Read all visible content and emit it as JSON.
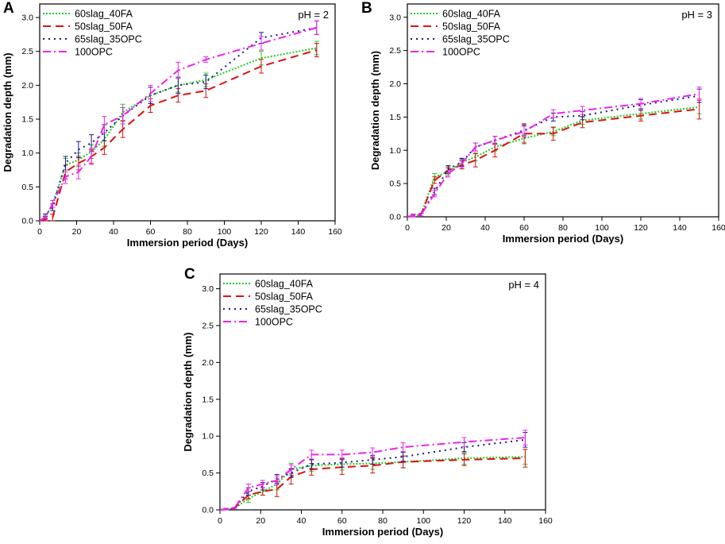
{
  "figure": {
    "series_styles": {
      "60slag_40FA": {
        "color": "#22cc22",
        "dash": "2,2"
      },
      "50slag_50FA": {
        "color": "#dd1111",
        "dash": "10,6"
      },
      "65slag_35OPC": {
        "color": "#1a1a8a",
        "dash": "2,5"
      },
      "100OPC": {
        "color": "#ee22ee",
        "dash": "10,4,2,4"
      }
    }
  },
  "chart_data": [
    {
      "panel": "A",
      "type": "line",
      "annotation": "pH = 2",
      "xlabel": "Immersion period (Days)",
      "ylabel": "Degradation depth (mm)",
      "xlim": [
        0,
        160
      ],
      "ylim": [
        0,
        3.2
      ],
      "xticks": [
        0,
        20,
        40,
        60,
        80,
        100,
        120,
        140,
        160
      ],
      "yticks": [
        0.0,
        0.5,
        1.0,
        1.5,
        2.0,
        2.5,
        3.0
      ],
      "ytick_labels": [
        "0.0",
        "0.5",
        "1.0",
        "1.5",
        "2.0",
        "2.5",
        "3.0"
      ],
      "legend_position": "top-left",
      "series": [
        {
          "name": "60slag_40FA",
          "x": [
            0,
            3,
            7,
            14,
            21,
            28,
            35,
            45,
            60,
            75,
            90,
            120,
            150
          ],
          "y": [
            0,
            0.05,
            0.25,
            0.82,
            0.9,
            1.02,
            1.2,
            1.6,
            1.85,
            2.0,
            2.08,
            2.4,
            2.55
          ],
          "err": [
            0,
            0.02,
            0.05,
            0.1,
            0.1,
            0.1,
            0.1,
            0.12,
            0.12,
            0.1,
            0.1,
            0.1,
            0.1
          ]
        },
        {
          "name": "50slag_50FA",
          "x": [
            0,
            3,
            7,
            14,
            21,
            28,
            35,
            45,
            60,
            75,
            90,
            120,
            150
          ],
          "y": [
            0,
            0.02,
            0.05,
            0.72,
            0.85,
            0.95,
            1.08,
            1.35,
            1.7,
            1.85,
            1.92,
            2.28,
            2.52
          ],
          "err": [
            0,
            0.02,
            0.05,
            0.1,
            0.1,
            0.1,
            0.1,
            0.12,
            0.1,
            0.1,
            0.1,
            0.1,
            0.1
          ]
        },
        {
          "name": "65slag_35OPC",
          "x": [
            0,
            3,
            7,
            14,
            21,
            28,
            35,
            45,
            60,
            75,
            90,
            120,
            150
          ],
          "y": [
            0,
            0.08,
            0.2,
            0.85,
            1.05,
            1.15,
            1.3,
            1.55,
            1.85,
            2.0,
            2.05,
            2.7,
            2.85
          ],
          "err": [
            0,
            0.02,
            0.05,
            0.1,
            0.12,
            0.12,
            0.12,
            0.12,
            0.12,
            0.12,
            0.1,
            0.08,
            0.1
          ]
        },
        {
          "name": "100OPC",
          "x": [
            0,
            3,
            7,
            14,
            21,
            28,
            35,
            45,
            60,
            75,
            90,
            120,
            150
          ],
          "y": [
            0,
            0.05,
            0.25,
            0.65,
            0.72,
            0.95,
            1.42,
            1.55,
            1.88,
            2.22,
            2.38,
            2.62,
            2.85
          ],
          "err": [
            0,
            0.02,
            0.05,
            0.1,
            0.1,
            0.12,
            0.12,
            0.12,
            0.12,
            0.12,
            0.04,
            0.1,
            0.1
          ]
        }
      ]
    },
    {
      "panel": "B",
      "type": "line",
      "annotation": "pH = 3",
      "xlabel": "Immersion period (Days)",
      "ylabel": "Degradation depth (mm)",
      "xlim": [
        0,
        160
      ],
      "ylim": [
        0,
        3.2
      ],
      "xticks": [
        0,
        20,
        40,
        60,
        80,
        100,
        120,
        140,
        160
      ],
      "yticks": [
        0.0,
        0.5,
        1.0,
        1.5,
        2.0,
        2.5,
        3.0
      ],
      "ytick_labels": [
        "0.0",
        "0.5",
        "1.0",
        "1.5",
        "2.0",
        "2.5",
        "3.0"
      ],
      "legend_position": "top-left",
      "series": [
        {
          "name": "60slag_40FA",
          "x": [
            0,
            3,
            7,
            14,
            21,
            28,
            35,
            45,
            60,
            75,
            90,
            120,
            150
          ],
          "y": [
            0,
            0.02,
            0.03,
            0.6,
            0.68,
            0.82,
            0.9,
            1.05,
            1.18,
            1.28,
            1.45,
            1.55,
            1.65
          ],
          "err": [
            0,
            0.02,
            0.02,
            0.05,
            0.05,
            0.05,
            0.06,
            0.06,
            0.06,
            0.06,
            0.06,
            0.08,
            0.1
          ]
        },
        {
          "name": "50slag_50FA",
          "x": [
            0,
            3,
            7,
            14,
            21,
            28,
            35,
            45,
            60,
            75,
            90,
            120,
            150
          ],
          "y": [
            0,
            0.02,
            0.03,
            0.55,
            0.7,
            0.78,
            0.85,
            1.0,
            1.25,
            1.25,
            1.42,
            1.52,
            1.62
          ],
          "err": [
            0,
            0.02,
            0.02,
            0.05,
            0.05,
            0.06,
            0.1,
            0.1,
            0.15,
            0.1,
            0.08,
            0.08,
            0.15
          ]
        },
        {
          "name": "65slag_35OPC",
          "x": [
            0,
            3,
            7,
            14,
            21,
            28,
            35,
            45,
            60,
            75,
            90,
            120,
            150
          ],
          "y": [
            0,
            0.02,
            0.03,
            0.38,
            0.72,
            0.82,
            1.05,
            1.15,
            1.3,
            1.5,
            1.52,
            1.68,
            1.82
          ],
          "err": [
            0,
            0.02,
            0.02,
            0.05,
            0.05,
            0.06,
            0.06,
            0.06,
            0.08,
            0.06,
            0.06,
            0.08,
            0.1
          ]
        },
        {
          "name": "100OPC",
          "x": [
            0,
            3,
            7,
            14,
            21,
            28,
            35,
            45,
            60,
            75,
            90,
            120,
            150
          ],
          "y": [
            0,
            0.02,
            0.03,
            0.35,
            0.65,
            0.8,
            1.05,
            1.15,
            1.28,
            1.55,
            1.6,
            1.7,
            1.85
          ],
          "err": [
            0,
            0.02,
            0.02,
            0.05,
            0.05,
            0.06,
            0.06,
            0.06,
            0.08,
            0.06,
            0.06,
            0.08,
            0.1
          ]
        }
      ]
    },
    {
      "panel": "C",
      "type": "line",
      "annotation": "pH = 4",
      "xlabel": "Immersion period (Days)",
      "ylabel": "Degradation depth (mm)",
      "xlim": [
        0,
        160
      ],
      "ylim": [
        0,
        3.2
      ],
      "xticks": [
        0,
        20,
        40,
        60,
        80,
        100,
        120,
        140,
        160
      ],
      "yticks": [
        0.0,
        0.5,
        1.0,
        1.5,
        2.0,
        2.5,
        3.0
      ],
      "ytick_labels": [
        "0.0",
        "0.5",
        "1.0",
        "1.5",
        "2.0",
        "2.5",
        "3.0"
      ],
      "legend_position": "top-left",
      "series": [
        {
          "name": "60slag_40FA",
          "x": [
            0,
            3,
            7,
            14,
            21,
            28,
            35,
            45,
            60,
            75,
            90,
            120,
            150
          ],
          "y": [
            0,
            0.01,
            0.02,
            0.15,
            0.25,
            0.35,
            0.55,
            0.6,
            0.62,
            0.63,
            0.65,
            0.7,
            0.72
          ],
          "err": [
            0,
            0.01,
            0.01,
            0.05,
            0.05,
            0.08,
            0.08,
            0.08,
            0.08,
            0.08,
            0.08,
            0.08,
            0.1
          ]
        },
        {
          "name": "50slag_50FA",
          "x": [
            0,
            3,
            7,
            14,
            21,
            28,
            35,
            45,
            60,
            75,
            90,
            120,
            150
          ],
          "y": [
            0,
            0.01,
            0.02,
            0.2,
            0.25,
            0.28,
            0.45,
            0.55,
            0.58,
            0.6,
            0.65,
            0.68,
            0.7
          ],
          "err": [
            0,
            0.01,
            0.01,
            0.05,
            0.05,
            0.1,
            0.1,
            0.08,
            0.1,
            0.1,
            0.08,
            0.08,
            0.12
          ]
        },
        {
          "name": "65slag_35OPC",
          "x": [
            0,
            3,
            7,
            14,
            21,
            28,
            35,
            45,
            60,
            75,
            90,
            120,
            150
          ],
          "y": [
            0,
            0.01,
            0.02,
            0.25,
            0.32,
            0.42,
            0.5,
            0.62,
            0.64,
            0.68,
            0.72,
            0.85,
            0.95
          ],
          "err": [
            0,
            0.01,
            0.01,
            0.05,
            0.05,
            0.06,
            0.06,
            0.06,
            0.06,
            0.06,
            0.06,
            0.06,
            0.1
          ]
        },
        {
          "name": "100OPC",
          "x": [
            0,
            3,
            7,
            14,
            21,
            28,
            35,
            45,
            60,
            75,
            90,
            120,
            150
          ],
          "y": [
            0,
            0.01,
            0.02,
            0.3,
            0.35,
            0.4,
            0.55,
            0.75,
            0.75,
            0.78,
            0.85,
            0.92,
            0.98
          ],
          "err": [
            0,
            0.01,
            0.01,
            0.05,
            0.05,
            0.06,
            0.06,
            0.06,
            0.06,
            0.06,
            0.06,
            0.06,
            0.1
          ]
        }
      ]
    }
  ]
}
